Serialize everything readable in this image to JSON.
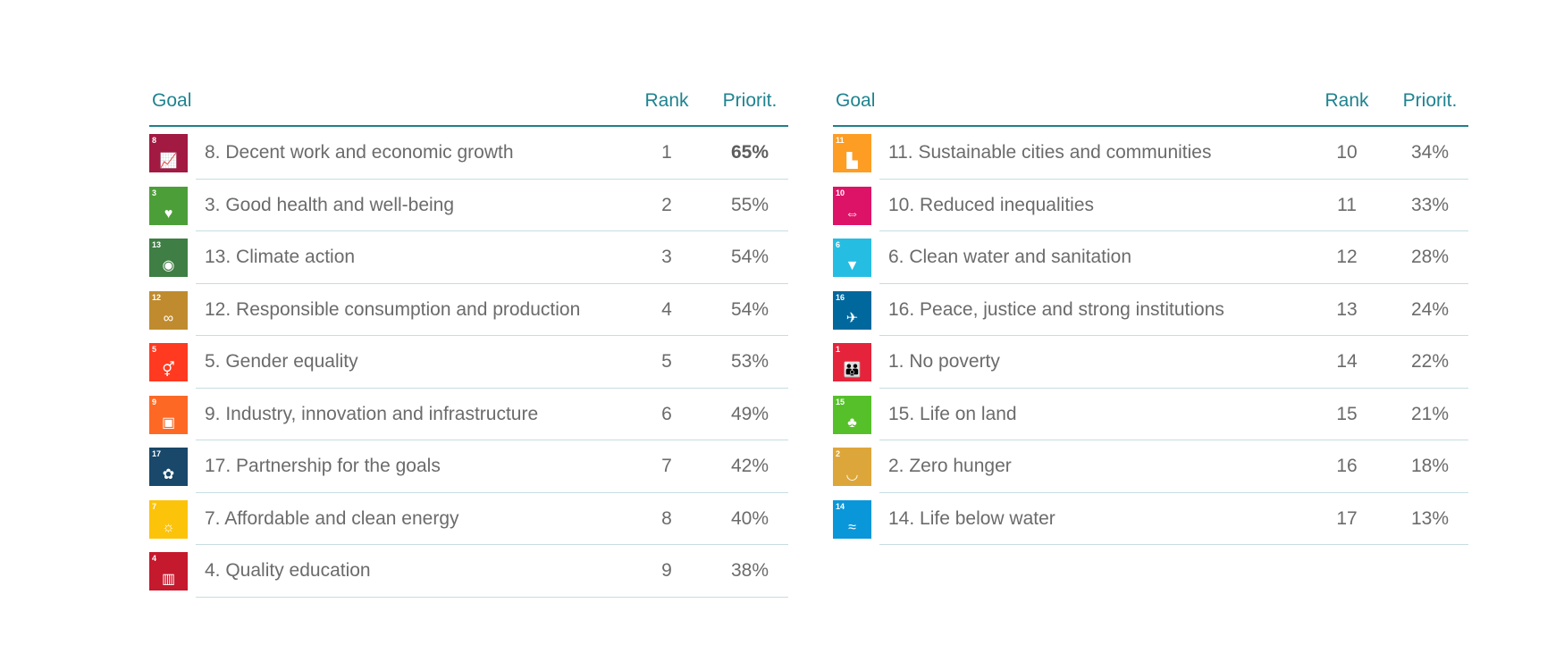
{
  "headers": {
    "goal": "Goal",
    "rank": "Rank",
    "priority": "Priorit."
  },
  "left": [
    {
      "num": "8",
      "label": "8. Decent work and economic growth",
      "rank": "1",
      "priority": "65%",
      "color": "#A21942",
      "icon": "chart-up-icon",
      "glyph": "📈"
    },
    {
      "num": "3",
      "label": "3. Good health and well-being",
      "rank": "2",
      "priority": "55%",
      "color": "#4C9F38",
      "icon": "heartbeat-icon",
      "glyph": "♥"
    },
    {
      "num": "13",
      "label": "13. Climate action",
      "rank": "3",
      "priority": "54%",
      "color": "#3F7E44",
      "icon": "eye-globe-icon",
      "glyph": "◉"
    },
    {
      "num": "12",
      "label": "12. Responsible consumption and production",
      "rank": "4",
      "priority": "54%",
      "color": "#BF8B2E",
      "icon": "infinity-icon",
      "glyph": "∞"
    },
    {
      "num": "5",
      "label": "5. Gender equality",
      "rank": "5",
      "priority": "53%",
      "color": "#FF3A21",
      "icon": "gender-icon",
      "glyph": "⚥"
    },
    {
      "num": "9",
      "label": "9. Industry, innovation and infrastructure",
      "rank": "6",
      "priority": "49%",
      "color": "#FD6925",
      "icon": "cubes-icon",
      "glyph": "▣"
    },
    {
      "num": "17",
      "label": "17. Partnership for the goals",
      "rank": "7",
      "priority": "42%",
      "color": "#19486A",
      "icon": "flower-icon",
      "glyph": "✿"
    },
    {
      "num": "7",
      "label": "7. Affordable and clean energy",
      "rank": "8",
      "priority": "40%",
      "color": "#FCC30B",
      "icon": "sun-icon",
      "glyph": "☼"
    },
    {
      "num": "4",
      "label": "4. Quality education",
      "rank": "9",
      "priority": "38%",
      "color": "#C5192D",
      "icon": "book-icon",
      "glyph": "▥"
    }
  ],
  "right": [
    {
      "num": "11",
      "label": "11. Sustainable cities and communities",
      "rank": "10",
      "priority": "34%",
      "color": "#FD9D24",
      "icon": "buildings-icon",
      "glyph": "▙"
    },
    {
      "num": "10",
      "label": "10. Reduced inequalities",
      "rank": "11",
      "priority": "33%",
      "color": "#DD1367",
      "icon": "equals-arrows-icon",
      "glyph": "⇔"
    },
    {
      "num": "6",
      "label": "6. Clean water and sanitation",
      "rank": "12",
      "priority": "28%",
      "color": "#26BDE2",
      "icon": "water-glass-icon",
      "glyph": "▼"
    },
    {
      "num": "16",
      "label": "16. Peace, justice and strong institutions",
      "rank": "13",
      "priority": "24%",
      "color": "#00689D",
      "icon": "dove-icon",
      "glyph": "✈"
    },
    {
      "num": "1",
      "label": "1. No poverty",
      "rank": "14",
      "priority": "22%",
      "color": "#E5243B",
      "icon": "family-icon",
      "glyph": "👪"
    },
    {
      "num": "15",
      "label": "15. Life on land",
      "rank": "15",
      "priority": "21%",
      "color": "#56C02B",
      "icon": "tree-icon",
      "glyph": "♣"
    },
    {
      "num": "2",
      "label": "2. Zero hunger",
      "rank": "16",
      "priority": "18%",
      "color": "#DDA63A",
      "icon": "bowl-icon",
      "glyph": "◡"
    },
    {
      "num": "14",
      "label": "14. Life below water",
      "rank": "17",
      "priority": "13%",
      "color": "#0A97D9",
      "icon": "fish-icon",
      "glyph": "≈"
    }
  ]
}
